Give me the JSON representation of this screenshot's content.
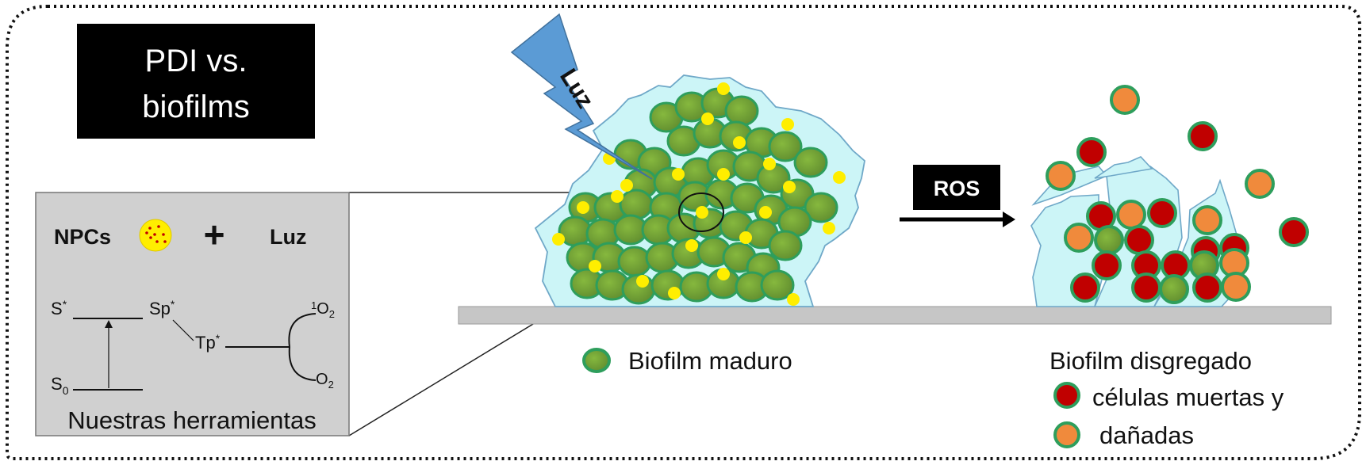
{
  "title": {
    "line1": "PDI vs.",
    "line2": "biofilms"
  },
  "tools": {
    "npcs_label": "NPCs",
    "plus": "+",
    "light_label": "Luz",
    "caption": "Nuestras herramientas",
    "jablonski": {
      "s_star": "S",
      "s_star_sup": "*",
      "sp_star": "Sp",
      "sp_star_sup": "*",
      "tp_star": "Tp",
      "tp_star_sup": "*",
      "s0": "S",
      "s0_sub": "0",
      "singlet_o2_sup": "1",
      "singlet_o2": "O",
      "singlet_o2_sub": "2",
      "triplet_o2": "O",
      "triplet_o2_sub": "2"
    }
  },
  "light_bolt_label": "Luz",
  "ros_label": "ROS",
  "legend": {
    "mature_biofilm": "Biofilm maduro",
    "disaggregated_biofilm": "Biofilm disgregado",
    "dead_cells_line1": "células muertas y",
    "dead_cells_line2": "dañadas"
  },
  "colors": {
    "matrix": "#ccf5f7",
    "cell_green": "#6f9e35",
    "cell_border": "#2e9e5c",
    "nanoparticle": "#ffee00",
    "dead_cell": "#c00000",
    "damaged_cell": "#f08a3c",
    "bolt": "#5b9bd5",
    "substrate": "#c6c6c6",
    "tools_panel": "#d0d0d0"
  }
}
